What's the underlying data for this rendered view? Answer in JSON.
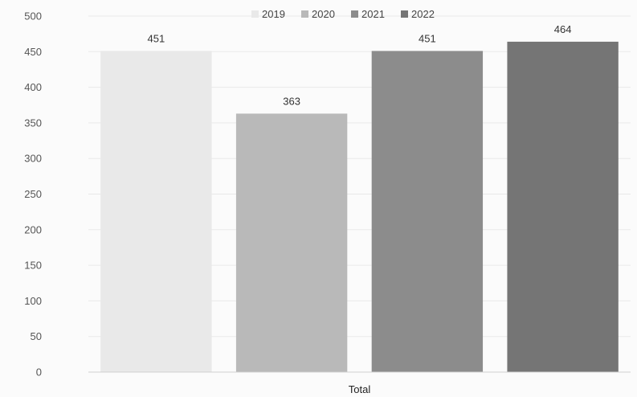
{
  "chart_data": {
    "type": "bar",
    "title": "",
    "xlabel": "",
    "ylabel": "",
    "categories": [
      "Total"
    ],
    "series": [
      {
        "name": "2019",
        "values": [
          451
        ],
        "color": "#e9e9e9"
      },
      {
        "name": "2020",
        "values": [
          363
        ],
        "color": "#b9b9b9"
      },
      {
        "name": "2021",
        "values": [
          451
        ],
        "color": "#8c8c8c"
      },
      {
        "name": "2022",
        "values": [
          464
        ],
        "color": "#757575"
      }
    ],
    "ylim": [
      0,
      500
    ],
    "yticks": [
      0,
      50,
      100,
      150,
      200,
      250,
      300,
      350,
      400,
      450,
      500
    ],
    "grid": true,
    "legend_position": "top"
  }
}
